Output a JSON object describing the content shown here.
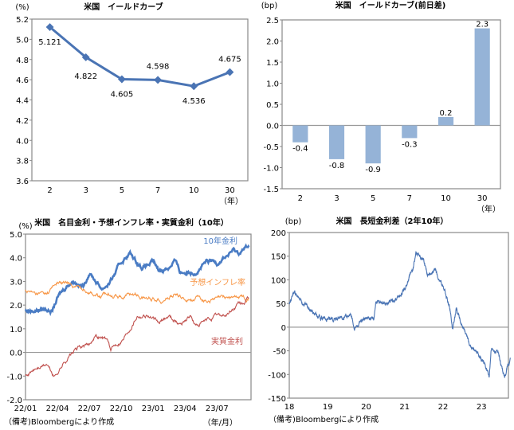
{
  "chart_data": [
    {
      "type": "line",
      "title": "米国　イールドカーブ",
      "ylabel": "(%)",
      "xlabel": "（年）",
      "categories": [
        "2",
        "3",
        "5",
        "7",
        "10",
        "30"
      ],
      "values": [
        5.121,
        4.822,
        4.605,
        4.598,
        4.536,
        4.675
      ],
      "data_labels": [
        "5.121",
        "4.822",
        "4.605",
        "4.598",
        "4.536",
        "4.675"
      ],
      "ylim": [
        3.6,
        5.2
      ],
      "yticks": [
        "5.2",
        "5.0",
        "4.8",
        "4.6",
        "4.4",
        "4.2",
        "4.0",
        "3.8",
        "3.6"
      ],
      "color": "#4a74b4"
    },
    {
      "type": "bar",
      "title": "米国　イールドカーブ(前日差)",
      "ylabel": "(bp)",
      "xlabel": "（年）",
      "categories": [
        "2",
        "3",
        "5",
        "7",
        "10",
        "30"
      ],
      "values": [
        -0.4,
        -0.8,
        -0.9,
        -0.3,
        0.2,
        2.3
      ],
      "data_labels": [
        "-0.4",
        "-0.8",
        "-0.9",
        "-0.3",
        "0.2",
        "2.3"
      ],
      "ylim": [
        -1.5,
        2.5
      ],
      "yticks": [
        "2.5",
        "2.0",
        "1.5",
        "1.0",
        "0.5",
        "0.0",
        "-0.5",
        "-1.0",
        "-1.5"
      ],
      "color": "#95b3d7"
    },
    {
      "type": "line",
      "title": "米国　名目金利・予想インフレ率・実質金利（10年）",
      "ylabel": "(%)",
      "xlabel": "（年/月）",
      "note": "（備考)Bloombergにより作成",
      "xticks": [
        "22/01",
        "22/04",
        "22/07",
        "22/10",
        "23/01",
        "23/04",
        "23/07"
      ],
      "x_unit": "months since 22/01",
      "xlim": [
        0,
        21.2
      ],
      "ylim": [
        -2.0,
        5.0
      ],
      "yticks": [
        "5.0",
        "4.0",
        "3.0",
        "2.0",
        "1.0",
        "0.0",
        "-1.0",
        "-2.0"
      ],
      "series": [
        {
          "name": "10年金利",
          "color": "#4a7cc4",
          "points": [
            [
              0,
              1.75
            ],
            [
              1,
              1.8
            ],
            [
              2,
              1.85
            ],
            [
              2.5,
              1.75
            ],
            [
              3,
              2.3
            ],
            [
              4,
              2.9
            ],
            [
              4.5,
              3.05
            ],
            [
              5.5,
              2.8
            ],
            [
              6,
              3.4
            ],
            [
              6.8,
              2.9
            ],
            [
              7.2,
              2.7
            ],
            [
              8,
              3.0
            ],
            [
              9,
              3.8
            ],
            [
              9.8,
              4.2
            ],
            [
              10.5,
              3.8
            ],
            [
              11,
              3.6
            ],
            [
              12,
              3.8
            ],
            [
              12.5,
              3.45
            ],
            [
              13.5,
              3.6
            ],
            [
              14,
              3.95
            ],
            [
              14.5,
              3.4
            ],
            [
              15,
              3.4
            ],
            [
              16,
              3.45
            ],
            [
              17,
              3.8
            ],
            [
              18,
              3.8
            ],
            [
              18.5,
              4.0
            ],
            [
              19,
              4.1
            ],
            [
              19.5,
              4.3
            ],
            [
              20,
              4.2
            ],
            [
              21,
              4.5
            ]
          ]
        },
        {
          "name": "予想インフレ率",
          "color": "#f79646",
          "points": [
            [
              0,
              2.6
            ],
            [
              1,
              2.45
            ],
            [
              2,
              2.5
            ],
            [
              3,
              2.95
            ],
            [
              4,
              2.9
            ],
            [
              5,
              2.75
            ],
            [
              6,
              2.6
            ],
            [
              7,
              2.35
            ],
            [
              8,
              2.5
            ],
            [
              9,
              2.35
            ],
            [
              10,
              2.5
            ],
            [
              11,
              2.3
            ],
            [
              12,
              2.3
            ],
            [
              13,
              2.25
            ],
            [
              14,
              2.45
            ],
            [
              15,
              2.25
            ],
            [
              16,
              2.3
            ],
            [
              17,
              2.2
            ],
            [
              18,
              2.25
            ],
            [
              19,
              2.35
            ],
            [
              20,
              2.35
            ],
            [
              21,
              2.35
            ]
          ]
        },
        {
          "name": "実質金利",
          "color": "#c0504d",
          "points": [
            [
              0,
              -1.0
            ],
            [
              1,
              -0.7
            ],
            [
              2,
              -0.5
            ],
            [
              2.7,
              -1.05
            ],
            [
              3.5,
              -0.5
            ],
            [
              4.2,
              -0.1
            ],
            [
              5,
              0.2
            ],
            [
              6,
              0.3
            ],
            [
              6.5,
              0.75
            ],
            [
              7.8,
              0.5
            ],
            [
              8,
              0.05
            ],
            [
              8.5,
              0.35
            ],
            [
              9.2,
              0.6
            ],
            [
              10,
              1.2
            ],
            [
              10.5,
              1.6
            ],
            [
              11.5,
              1.6
            ],
            [
              12.5,
              1.2
            ],
            [
              13.5,
              1.55
            ],
            [
              14.5,
              1.2
            ],
            [
              15.5,
              1.55
            ],
            [
              16,
              1.1
            ],
            [
              17,
              1.3
            ],
            [
              18,
              1.55
            ],
            [
              19,
              1.6
            ],
            [
              19.5,
              1.8
            ],
            [
              20,
              2.0
            ],
            [
              21,
              2.2
            ]
          ]
        }
      ]
    },
    {
      "type": "line",
      "title": "米国　長短金利差（2年10年）",
      "ylabel": "(bp)",
      "note": "（備考)Bloombergにより作成",
      "xticks": [
        "18",
        "19",
        "20",
        "21",
        "22",
        "23"
      ],
      "x_unit": "years since 2018",
      "xlim": [
        0,
        5.7
      ],
      "ylim": [
        -150,
        200
      ],
      "yticks": [
        "200",
        "150",
        "100",
        "50",
        "0",
        "-50",
        "-100",
        "-150"
      ],
      "series": [
        {
          "name": "長短金利差",
          "color": "#4a74b4",
          "points": [
            [
              0,
              50
            ],
            [
              0.1,
              75
            ],
            [
              0.3,
              55
            ],
            [
              0.5,
              40
            ],
            [
              0.7,
              25
            ],
            [
              1,
              15
            ],
            [
              1.3,
              18
            ],
            [
              1.6,
              25
            ],
            [
              1.7,
              -2
            ],
            [
              2,
              20
            ],
            [
              2.2,
              15
            ],
            [
              2.25,
              55
            ],
            [
              2.5,
              50
            ],
            [
              2.8,
              60
            ],
            [
              3,
              80
            ],
            [
              3.2,
              120
            ],
            [
              3.3,
              155
            ],
            [
              3.5,
              140
            ],
            [
              3.6,
              110
            ],
            [
              3.8,
              120
            ],
            [
              3.9,
              100
            ],
            [
              4,
              85
            ],
            [
              4.1,
              60
            ],
            [
              4.2,
              30
            ],
            [
              4.25,
              -5
            ],
            [
              4.35,
              40
            ],
            [
              4.5,
              0
            ],
            [
              4.7,
              -40
            ],
            [
              4.9,
              -55
            ],
            [
              5.1,
              -80
            ],
            [
              5.2,
              -105
            ],
            [
              5.25,
              -45
            ],
            [
              5.45,
              -55
            ],
            [
              5.55,
              -95
            ],
            [
              5.6,
              -105
            ],
            [
              5.7,
              -75
            ],
            [
              5.75,
              -65
            ]
          ]
        }
      ]
    }
  ]
}
